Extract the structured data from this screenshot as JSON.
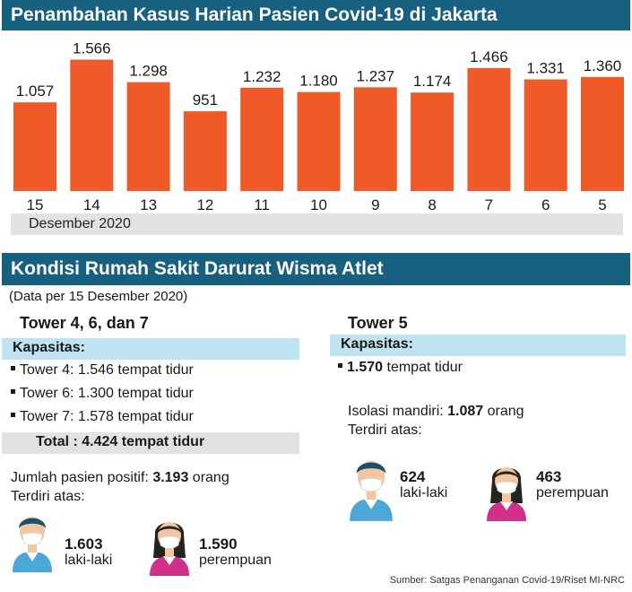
{
  "header": {
    "title": "Penambahan Kasus Harian Pasien Covid-19 di Jakarta"
  },
  "chart_data": {
    "type": "bar",
    "title": "Penambahan Kasus Harian Pasien Covid-19 di Jakarta",
    "categories": [
      "15",
      "14",
      "13",
      "12",
      "11",
      "10",
      "9",
      "8",
      "7",
      "6",
      "5"
    ],
    "labels": [
      "1.057",
      "1.566",
      "1.298",
      "951",
      "1.232",
      "1.180",
      "1.237",
      "1.174",
      "1.466",
      "1.331",
      "1.360"
    ],
    "values": [
      1057,
      1566,
      1298,
      951,
      1232,
      1180,
      1237,
      1174,
      1466,
      1331,
      1360
    ],
    "xlabel": "Desember 2020",
    "ylabel": "",
    "ylim": [
      0,
      1700
    ],
    "grid": false,
    "legend": "none",
    "bar_color": "#f05a28"
  },
  "hospital": {
    "title": "Kondisi Rumah Sakit Darurat Wisma Atlet",
    "subtitle": "(Data per 15 Desember 2020)",
    "left": {
      "title": "Tower 4, 6, dan 7",
      "capacity_label": "Kapasitas:",
      "items": [
        "Tower 4: 1.546 tempat tidur",
        "Tower 6: 1.300 tempat tidur",
        "Tower 7: 1.578 tempat tidur"
      ],
      "total": "Total   : 4.424 tempat tidur",
      "patients_prefix": "Jumlah pasien positif: ",
      "patients_value": "3.193",
      "patients_suffix": " orang",
      "breakdown_label": "Terdiri atas:",
      "male_count": "1.603",
      "male_label": "laki-laki",
      "female_count": "1.590",
      "female_label": "perempuan"
    },
    "right": {
      "title": "Tower 5",
      "capacity_label": "Kapasitas:",
      "capacity_value": "1.570",
      "capacity_suffix": " tempat tidur",
      "isolation_prefix": "Isolasi mandiri: ",
      "isolation_value": "1.087",
      "isolation_suffix": " orang",
      "breakdown_label": "Terdiri atas:",
      "male_count": "624",
      "male_label": "laki-laki",
      "female_count": "463",
      "female_label": "perempuan"
    }
  },
  "source": "Sumber: Satgas Penanganan Covid-19/Riset MI-NRC",
  "colors": {
    "banner": "#17607f",
    "bar": "#f05a28",
    "capacity_band": "#bfe3f1",
    "gray_band": "#e2e2e2",
    "male_shirt": "#4aa7d6",
    "female_shirt": "#d1308a"
  },
  "icons": [
    "man-with-mask-icon",
    "woman-with-mask-icon"
  ]
}
